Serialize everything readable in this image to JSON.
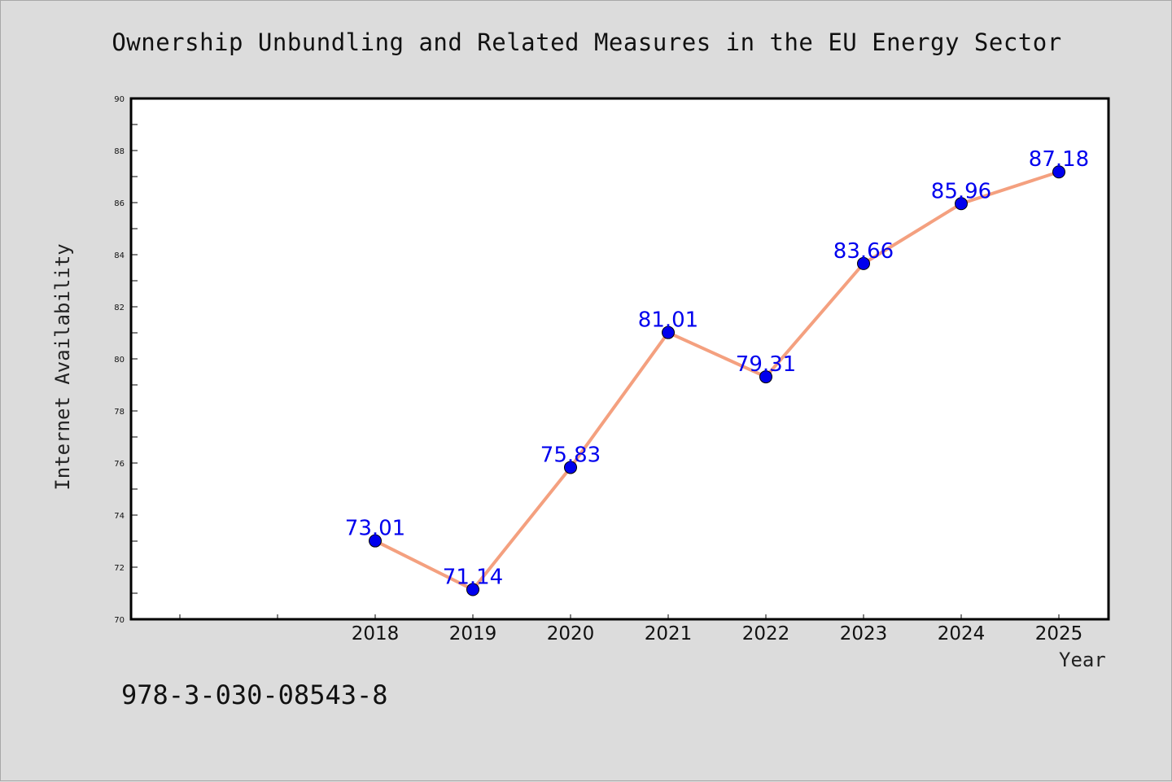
{
  "chart_data": {
    "type": "line",
    "title": "Ownership Unbundling and Related Measures in the EU Energy Sector",
    "xlabel": "Year",
    "ylabel": "Internet Availability",
    "categories": [
      "2018",
      "2019",
      "2020",
      "2021",
      "2022",
      "2023",
      "2024",
      "2025"
    ],
    "values": [
      73.01,
      71.14,
      75.83,
      81.01,
      79.31,
      83.66,
      85.96,
      87.18
    ],
    "value_labels": [
      "73.01",
      "71.14",
      "75.83",
      "81.01",
      "79.31",
      "83.66",
      "85.96",
      "87.18"
    ],
    "ylim": [
      70,
      90
    ],
    "yticks": [
      "70",
      "72",
      "74",
      "76",
      "78",
      "80",
      "82",
      "84",
      "86",
      "88",
      "90"
    ],
    "grid": false,
    "line_color": "#f4a07f",
    "marker_color": "#0000ee",
    "label_color": "#0000ee"
  },
  "footer": {
    "identifier": "978-3-030-08543-8"
  }
}
